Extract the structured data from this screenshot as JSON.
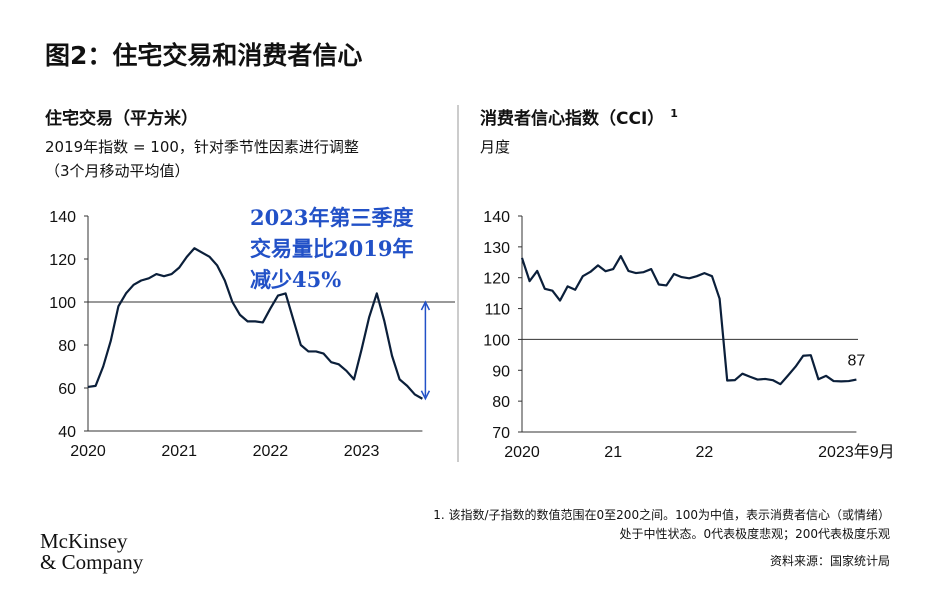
{
  "title": "图2：住宅交易和消费者信心",
  "chart_data": [
    {
      "type": "line",
      "title": "住宅交易（平方米）",
      "subtitle": [
        "2019年指数 = 100，针对季节性因素进行调整",
        "（3个月移动平均值）"
      ],
      "categories": [
        "2020",
        null,
        null,
        null,
        null,
        null,
        null,
        null,
        null,
        null,
        null,
        null,
        "2021",
        null,
        null,
        null,
        null,
        null,
        null,
        null,
        null,
        null,
        null,
        null,
        "2022",
        null,
        null,
        null,
        null,
        null,
        null,
        null,
        null,
        null,
        null,
        null,
        "2023",
        null,
        null,
        null,
        null,
        null,
        null,
        null,
        null
      ],
      "series": [
        {
          "name": "住宅交易",
          "color": "#0b1f3a",
          "values": [
            60.5,
            61,
            70,
            82,
            98,
            104,
            108,
            110,
            111,
            113,
            112,
            113,
            116,
            121,
            125,
            123,
            121,
            117,
            110,
            100,
            94,
            91,
            91,
            90.5,
            97,
            103,
            104,
            92,
            80,
            77,
            77,
            76,
            72,
            71,
            68,
            64,
            78,
            93,
            104,
            91,
            75,
            64,
            61,
            57,
            55
          ]
        }
      ],
      "ylim": [
        40,
        140
      ],
      "yticks": [
        40,
        60,
        80,
        100,
        120,
        140
      ],
      "hline": 100,
      "annotation": [
        "2023年第三季度",
        "交易量比2019年",
        "减少45%"
      ],
      "annotation_color": "#2251c7"
    },
    {
      "type": "line",
      "title": "消费者信心指数（CCI）",
      "title_note": "1",
      "subtitle": [
        "月度"
      ],
      "categories": [
        "2020",
        null,
        null,
        null,
        null,
        null,
        null,
        null,
        null,
        null,
        null,
        null,
        "21",
        null,
        null,
        null,
        null,
        null,
        null,
        null,
        null,
        null,
        null,
        null,
        "22",
        null,
        null,
        null,
        null,
        null,
        null,
        null,
        null,
        null,
        null,
        null,
        null,
        null,
        null,
        null,
        null,
        null,
        null,
        null,
        "2023年9月"
      ],
      "series": [
        {
          "name": "消费者信心指数",
          "color": "#0b1f3a",
          "values": [
            126.4,
            118.9,
            122.2,
            116.4,
            115.8,
            112.6,
            117.2,
            116.1,
            120.5,
            121.9,
            124,
            122.1,
            122.8,
            127,
            122.2,
            121.5,
            121.8,
            122.8,
            117.8,
            117.5,
            121.2,
            120.2,
            119.8,
            120.5,
            121.5,
            120.5,
            113.2,
            86.7,
            86.8,
            88.9,
            87.9,
            87,
            87.2,
            86.8,
            85.5,
            88.3,
            91.2,
            94.7,
            94.9,
            87.1,
            88.2,
            86.5,
            86.4,
            86.5,
            87
          ]
        }
      ],
      "ylim": [
        70,
        140
      ],
      "yticks": [
        70,
        80,
        90,
        100,
        110,
        120,
        130,
        140
      ],
      "hline": 100,
      "label_last": true
    }
  ],
  "footnote": [
    "1.  该指数/子指数的数值范围在0至200之间。100为中值，表示消费者信心（或情绪）",
    "处于中性状态。0代表极度悲观；200代表极度乐观"
  ],
  "source": "资料来源：国家统计局",
  "logo": [
    "McKinsey",
    "& Company"
  ]
}
